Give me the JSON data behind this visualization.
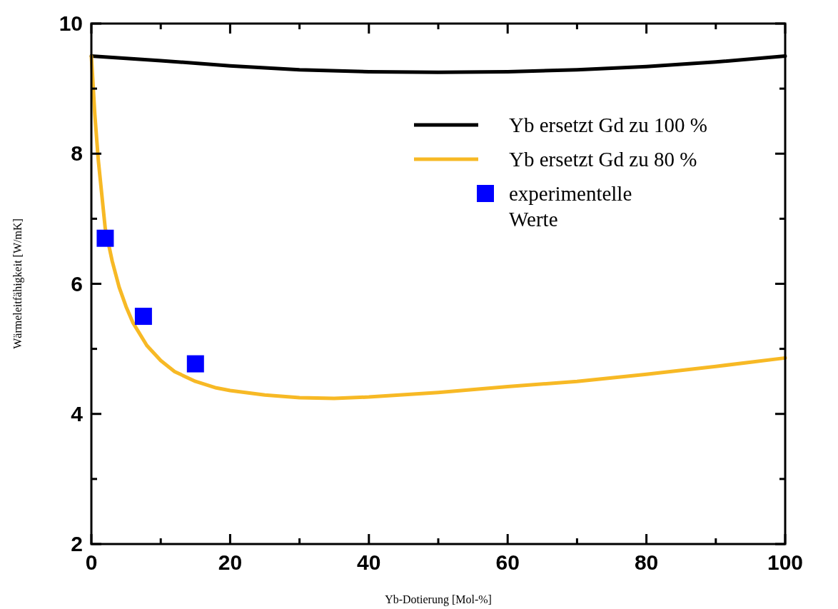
{
  "chart_data": {
    "type": "line",
    "xlabel": "Yb-Dotierung [Mol-%]",
    "ylabel": "Wärmeleitfähigkeit  [W/mK]",
    "xlim": [
      0,
      100
    ],
    "ylim": [
      2,
      10
    ],
    "xticks": [
      0,
      {
        "value": 10,
        "label": null
      },
      20,
      {
        "value": 30,
        "label": null
      },
      40,
      {
        "value": 50,
        "label": null
      },
      60,
      {
        "value": 70,
        "label": null
      },
      80,
      {
        "value": 90,
        "label": null
      },
      100
    ],
    "yticks": [
      2,
      {
        "value": 3,
        "label": null
      },
      4,
      {
        "value": 5,
        "label": null
      },
      6,
      {
        "value": 7,
        "label": null
      },
      8,
      {
        "value": 9,
        "label": null
      },
      10
    ],
    "grid": false,
    "legend": "top right",
    "series": [
      {
        "name": "Yb ersetzt Gd zu 100 %",
        "color": "#000000",
        "x": [
          0,
          10,
          20,
          30,
          40,
          50,
          60,
          70,
          80,
          90,
          100
        ],
        "values": [
          9.5,
          9.43,
          9.35,
          9.29,
          9.26,
          9.25,
          9.26,
          9.29,
          9.34,
          9.41,
          9.5
        ]
      },
      {
        "name": "Yb ersetzt Gd zu 80 %",
        "color": "#f7b925",
        "x": [
          0,
          0.5,
          1,
          2,
          3,
          4,
          5,
          6,
          8,
          10,
          12,
          15,
          18,
          20,
          25,
          30,
          35,
          40,
          50,
          60,
          70,
          80,
          90,
          100
        ],
        "values": [
          9.5,
          8.6,
          7.9,
          6.85,
          6.35,
          5.95,
          5.65,
          5.4,
          5.05,
          4.82,
          4.65,
          4.5,
          4.4,
          4.36,
          4.29,
          4.25,
          4.24,
          4.26,
          4.33,
          4.42,
          4.5,
          4.61,
          4.73,
          4.86
        ]
      },
      {
        "name": "experimentelle Werte",
        "type": "scatter",
        "marker": "square",
        "color": "#0000ff",
        "x": [
          2,
          7.5,
          15
        ],
        "values": [
          6.7,
          5.5,
          4.77
        ]
      }
    ]
  }
}
